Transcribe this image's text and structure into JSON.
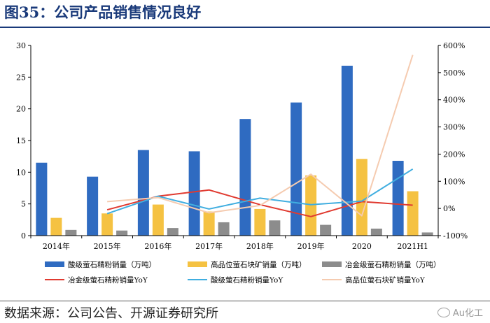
{
  "header": {
    "title": "图35：公司产品销售情况良好"
  },
  "footer": {
    "source": "数据来源：公司公告、开源证券研究所",
    "watermark": "Au化工"
  },
  "chart_data": {
    "type": "bar",
    "categories": [
      "2014年",
      "2015年",
      "2016年",
      "2017年",
      "2018年",
      "2019年",
      "2020",
      "2021H1"
    ],
    "ylim": [
      0,
      30
    ],
    "yticks": [
      0,
      5,
      10,
      15,
      20,
      25,
      30
    ],
    "y2lim": [
      -100,
      600
    ],
    "y2ticks": [
      "-100%",
      "0%",
      "100%",
      "200%",
      "300%",
      "400%",
      "500%",
      "600%"
    ],
    "y2tick_values": [
      -100,
      0,
      100,
      200,
      300,
      400,
      500,
      600
    ],
    "grid": false,
    "legend_position": "bottom",
    "bar_series": [
      {
        "name": "酸级萤石精粉销量（万吨）",
        "color": "#2f6bc1",
        "values": [
          11.5,
          9.3,
          13.5,
          13.3,
          18.4,
          21.0,
          26.8,
          11.8
        ]
      },
      {
        "name": "高品位萤石块矿销量（万吨）",
        "color": "#f5c242",
        "values": [
          2.8,
          3.5,
          4.9,
          3.8,
          4.2,
          9.5,
          12.1,
          7.0
        ]
      },
      {
        "name": "冶金级萤石精粉销量（万吨）",
        "color": "#8c8c8c",
        "values": [
          0.9,
          0.8,
          1.2,
          2.1,
          2.4,
          1.7,
          1.1,
          0.5
        ]
      }
    ],
    "line_series": [
      {
        "name": "冶金级萤石精粉销量YoY",
        "color": "#e03a30",
        "x_index": [
          1,
          2,
          3,
          4,
          5,
          6,
          7
        ],
        "values": [
          -5,
          45,
          68,
          14,
          -30,
          25,
          12
        ]
      },
      {
        "name": "酸级萤石精粉销量YoY",
        "color": "#40aee0",
        "x_index": [
          1,
          2,
          3,
          4,
          5,
          6,
          7
        ],
        "values": [
          -19,
          45,
          -2,
          38,
          14,
          27,
          145
        ]
      },
      {
        "name": "高品位萤石块矿销量YoY",
        "color": "#f5cbb0",
        "x_index": [
          1,
          2,
          3,
          4,
          5,
          6,
          7
        ],
        "values": [
          25,
          40,
          -16,
          11,
          126,
          -27,
          565
        ]
      }
    ]
  }
}
